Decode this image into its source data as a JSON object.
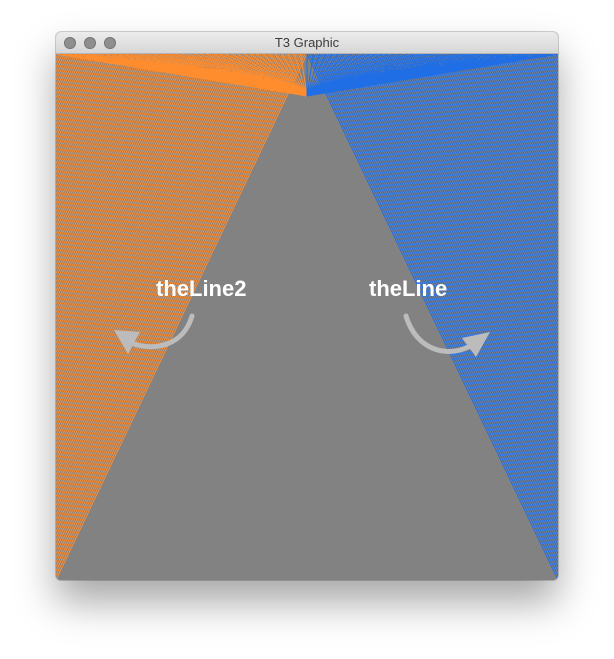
{
  "window": {
    "title": "T3 Graphic",
    "background_color": "#828282"
  },
  "canvas": {
    "labels": {
      "left": "theLine2",
      "right": "theLine"
    },
    "colors": {
      "left_fan": "#ff8d2e",
      "right_fan": "#1f6ee6",
      "arrow": "#bcbcbc"
    },
    "icons": {
      "left_arrow": "curved-arrow-left-icon",
      "right_arrow": "curved-arrow-right-icon"
    }
  }
}
